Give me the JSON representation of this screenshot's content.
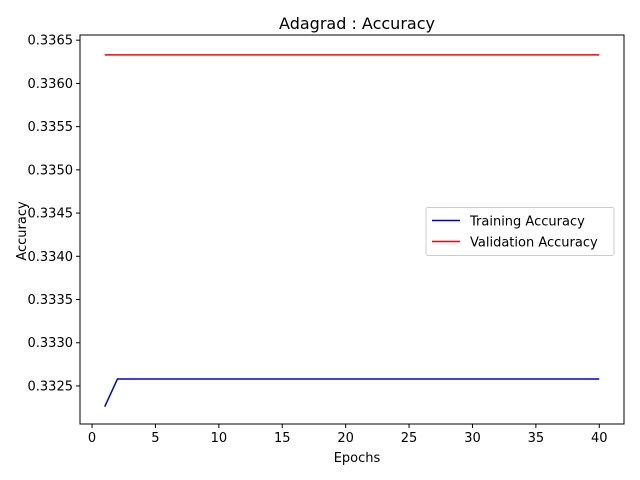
{
  "chart_data": {
    "type": "line",
    "title": "Adagrad : Accuracy",
    "xlabel": "Epochs",
    "ylabel": "Accuracy",
    "xlim": [
      -0.95,
      41.95
    ],
    "ylim": [
      0.33206,
      0.33656
    ],
    "xticks": [
      0,
      5,
      10,
      15,
      20,
      25,
      30,
      35,
      40
    ],
    "yticks": [
      0.3325,
      0.333,
      0.3335,
      0.334,
      0.3345,
      0.335,
      0.3355,
      0.336,
      0.3365
    ],
    "ytick_labels": [
      "0.3325",
      "0.3330",
      "0.3335",
      "0.3340",
      "0.3345",
      "0.3350",
      "0.3355",
      "0.3360",
      "0.3365"
    ],
    "grid": false,
    "legend_position": "center-right",
    "series": [
      {
        "name": "Training Accuracy",
        "color": "#0000cc",
        "x": [
          1,
          2,
          3,
          4,
          5,
          6,
          7,
          8,
          9,
          10,
          11,
          12,
          13,
          14,
          15,
          16,
          17,
          18,
          19,
          20,
          21,
          22,
          23,
          24,
          25,
          26,
          27,
          28,
          29,
          30,
          31,
          32,
          33,
          34,
          35,
          36,
          37,
          38,
          39,
          40
        ],
        "values": [
          0.33226,
          0.33258,
          0.33258,
          0.33258,
          0.33258,
          0.33258,
          0.33258,
          0.33258,
          0.33258,
          0.33258,
          0.33258,
          0.33258,
          0.33258,
          0.33258,
          0.33258,
          0.33258,
          0.33258,
          0.33258,
          0.33258,
          0.33258,
          0.33258,
          0.33258,
          0.33258,
          0.33258,
          0.33258,
          0.33258,
          0.33258,
          0.33258,
          0.33258,
          0.33258,
          0.33258,
          0.33258,
          0.33258,
          0.33258,
          0.33258,
          0.33258,
          0.33258,
          0.33258,
          0.33258,
          0.33258
        ]
      },
      {
        "name": "Validation Accuracy",
        "color": "#ff0000",
        "x": [
          1,
          2,
          3,
          4,
          5,
          6,
          7,
          8,
          9,
          10,
          11,
          12,
          13,
          14,
          15,
          16,
          17,
          18,
          19,
          20,
          21,
          22,
          23,
          24,
          25,
          26,
          27,
          28,
          29,
          30,
          31,
          32,
          33,
          34,
          35,
          36,
          37,
          38,
          39,
          40
        ],
        "values": [
          0.33633,
          0.33633,
          0.33633,
          0.33633,
          0.33633,
          0.33633,
          0.33633,
          0.33633,
          0.33633,
          0.33633,
          0.33633,
          0.33633,
          0.33633,
          0.33633,
          0.33633,
          0.33633,
          0.33633,
          0.33633,
          0.33633,
          0.33633,
          0.33633,
          0.33633,
          0.33633,
          0.33633,
          0.33633,
          0.33633,
          0.33633,
          0.33633,
          0.33633,
          0.33633,
          0.33633,
          0.33633,
          0.33633,
          0.33633,
          0.33633,
          0.33633,
          0.33633,
          0.33633,
          0.33633,
          0.33633
        ]
      }
    ]
  }
}
